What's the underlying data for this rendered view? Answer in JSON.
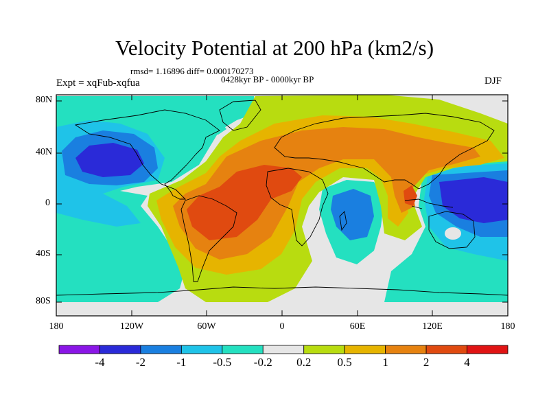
{
  "title": "Velocity Potential at 200 hPa (km2/s)",
  "stats_line": "rmsd= 1.16896 diff= 0.000170273",
  "period_line": "0428kyr BP - 0000kyr BP",
  "experiment": "Expt = xqFub-xqfua",
  "season": "DJF",
  "y_ticks": [
    "80N",
    "40N",
    "0",
    "40S",
    "80S"
  ],
  "x_ticks": [
    "180",
    "120W",
    "60W",
    "0",
    "60E",
    "120E",
    "180"
  ],
  "colorbar": {
    "labels": [
      "-4",
      "-2",
      "-1",
      "-0.5",
      "-0.2",
      "0.2",
      "0.5",
      "1",
      "2",
      "4"
    ],
    "colors": [
      "#8a16e6",
      "#2a2ad8",
      "#1a7fe0",
      "#1fc3e8",
      "#24e0c0",
      "#e6e6e6",
      "#b8dc10",
      "#e6b400",
      "#e68210",
      "#e04a10",
      "#e01414"
    ]
  },
  "colors": {
    "background": "#e6e6e6",
    "coastline": "#000000"
  }
}
